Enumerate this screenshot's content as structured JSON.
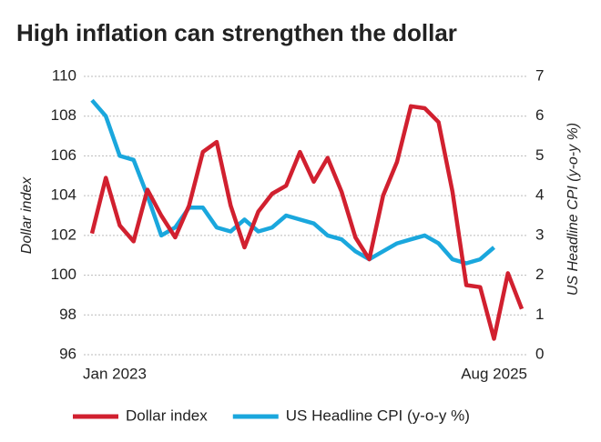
{
  "chart_data": {
    "type": "line",
    "title": "High inflation can strengthen the dollar",
    "y_label": "Dollar index",
    "y2_label": "US Headline CPI (y-o-y %)",
    "categories": [
      "Jan 2023",
      null,
      null,
      null,
      null,
      null,
      null,
      null,
      null,
      null,
      null,
      null,
      null,
      null,
      null,
      null,
      null,
      null,
      null,
      null,
      null,
      null,
      null,
      null,
      null,
      null,
      null,
      null,
      null,
      null,
      null,
      "Aug 2025"
    ],
    "series": [
      {
        "name": "Dollar index",
        "color": "#d1202f",
        "axis": "y",
        "values": [
          102.1,
          104.9,
          102.5,
          101.7,
          104.3,
          103.0,
          101.9,
          103.5,
          106.2,
          106.7,
          103.5,
          101.4,
          103.2,
          104.1,
          104.5,
          106.2,
          104.7,
          105.9,
          104.2,
          101.9,
          100.8,
          104.0,
          105.7,
          108.5,
          108.4,
          107.7,
          104.2,
          99.5,
          99.4,
          96.8,
          100.1,
          98.3
        ]
      },
      {
        "name": "US Headline CPI (y-o-y %)",
        "color": "#1aa7dd",
        "axis": "y2",
        "values": [
          6.4,
          6.0,
          5.0,
          4.9,
          4.0,
          3.0,
          3.2,
          3.7,
          3.7,
          3.2,
          3.1,
          3.4,
          3.1,
          3.2,
          3.5,
          3.4,
          3.3,
          3.0,
          2.9,
          2.6,
          2.4,
          2.6,
          2.8,
          2.9,
          3.0,
          2.8,
          2.4,
          2.3,
          2.4,
          2.7,
          null,
          null
        ]
      }
    ],
    "ylim": [
      96,
      110
    ],
    "yticks": [
      96,
      98,
      100,
      102,
      104,
      106,
      108,
      110
    ],
    "y2lim": [
      0,
      7
    ],
    "y2ticks": [
      0,
      1,
      2,
      3,
      4,
      5,
      6,
      7
    ],
    "grid": true,
    "legend": "bottom"
  }
}
